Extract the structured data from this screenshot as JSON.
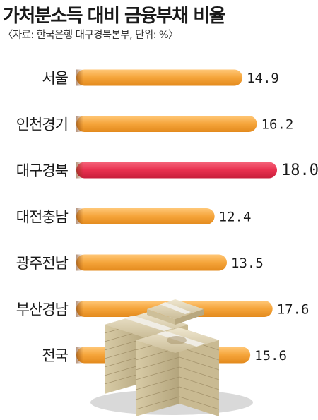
{
  "header": {
    "title": "가처분소득 대비 금융부채 비율",
    "source": "〈자료: 한국은행 대구경북본부, 단위: %〉"
  },
  "colors": {
    "bar": "#f5a43a",
    "highlight": "#e8304f",
    "text": "#1a1a1a"
  },
  "chart_data": {
    "type": "bar",
    "orientation": "horizontal",
    "title": "가처분소득 대비 금융부채 비율",
    "subtitle": "〈자료: 한국은행 대구경북본부, 단위: %〉",
    "categories": [
      "서울",
      "인천경기",
      "대구경북",
      "대전충남",
      "광주전남",
      "부산경남",
      "전국"
    ],
    "values": [
      14.9,
      16.2,
      18.0,
      12.4,
      13.5,
      17.6,
      15.6
    ],
    "value_labels": [
      "14.9",
      "16.2",
      "18.0",
      "12.4",
      "13.5",
      "17.6",
      "15.6"
    ],
    "highlight": "대구경북",
    "xlim": [
      0,
      18.0
    ],
    "grid": false,
    "legend": "none"
  },
  "decoration": {
    "image_icon": "stacked-money-bundles-icon"
  }
}
